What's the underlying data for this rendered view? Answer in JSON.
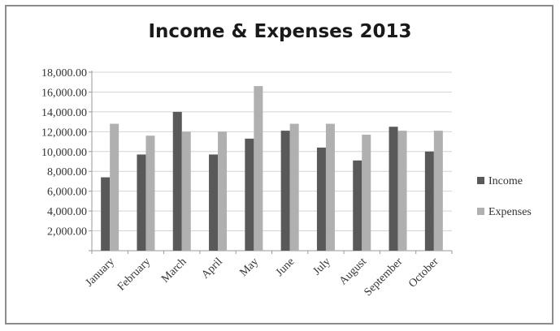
{
  "chart_data": {
    "type": "bar",
    "title": "Income & Expenses 2013",
    "xlabel": "",
    "ylabel": "",
    "categories": [
      "January",
      "February",
      "March",
      "April",
      "May",
      "June",
      "July",
      "August",
      "September",
      "October"
    ],
    "series": [
      {
        "name": "Income",
        "color": "#595959",
        "values": [
          7400,
          9700,
          14000,
          9700,
          11300,
          12100,
          10400,
          9100,
          12500,
          10000
        ]
      },
      {
        "name": "Expenses",
        "color": "#b0b0b0",
        "values": [
          12800,
          11600,
          12000,
          12000,
          16600,
          12800,
          12800,
          11700,
          12100,
          12100
        ]
      }
    ],
    "ylim": [
      0,
      18000
    ],
    "yticks": [
      0,
      2000,
      4000,
      6000,
      8000,
      10000,
      12000,
      14000,
      16000,
      18000
    ],
    "ytick_labels": [
      "",
      "2,000.00",
      "4,000.00",
      "6,000.00",
      "8,000.00",
      "10,000.00",
      "12,000.00",
      "14,000.00",
      "16,000.00",
      "18,000.00"
    ],
    "grid": true,
    "legend_position": "right"
  }
}
